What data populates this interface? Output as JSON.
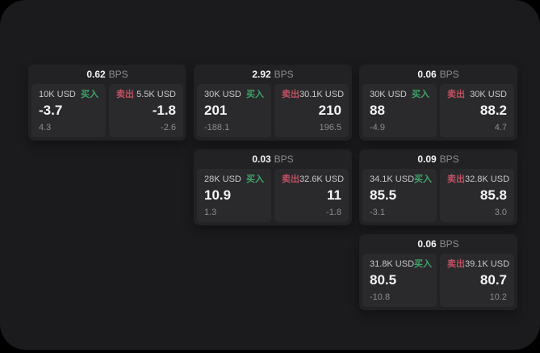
{
  "labels": {
    "bps": "BPS",
    "buy": "买入",
    "sell": "卖出"
  },
  "colors": {
    "buy": "#3fa468",
    "sell": "#c05061",
    "panel": "#1b1b1d",
    "card": "#222225",
    "tile": "#2a2a2d"
  },
  "cards": [
    {
      "bps": "0.62",
      "buy": {
        "size": "10K USD",
        "price": "-3.7",
        "delta": "4.3"
      },
      "sell": {
        "size": "5.5K USD",
        "price": "-1.8",
        "delta": "-2.6"
      }
    },
    {
      "bps": "2.92",
      "buy": {
        "size": "30K USD",
        "price": "201",
        "delta": "-188.1"
      },
      "sell": {
        "size": "30.1K USD",
        "price": "210",
        "delta": "196.5"
      }
    },
    {
      "bps": "0.06",
      "buy": {
        "size": "30K USD",
        "price": "88",
        "delta": "-4.9"
      },
      "sell": {
        "size": "30K USD",
        "price": "88.2",
        "delta": "4.7"
      }
    },
    {
      "bps": "0.03",
      "buy": {
        "size": "28K USD",
        "price": "10.9",
        "delta": "1.3"
      },
      "sell": {
        "size": "32.6K USD",
        "price": "11",
        "delta": "-1.8"
      }
    },
    {
      "bps": "0.09",
      "buy": {
        "size": "34.1K USD",
        "price": "85.5",
        "delta": "-3.1"
      },
      "sell": {
        "size": "32.8K USD",
        "price": "85.8",
        "delta": "3.0"
      }
    },
    {
      "bps": "0.06",
      "buy": {
        "size": "31.8K USD",
        "price": "80.5",
        "delta": "-10.8"
      },
      "sell": {
        "size": "39.1K USD",
        "price": "80.7",
        "delta": "10.2"
      }
    }
  ]
}
